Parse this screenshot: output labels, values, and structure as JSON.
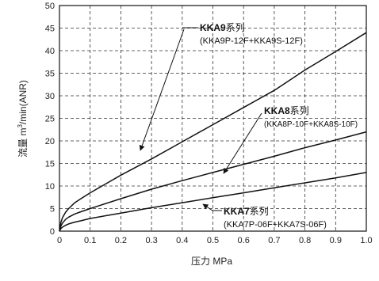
{
  "chart_data": {
    "type": "line",
    "xlabel": "压力 MPa",
    "ylabel_parts": [
      "流量 m",
      "3",
      "/min(ANR)"
    ],
    "xlim": [
      0,
      1.0
    ],
    "ylim": [
      0,
      50
    ],
    "x_ticks": [
      "0",
      "0.1",
      "0.2",
      "0.3",
      "0.4",
      "0.5",
      "0.6",
      "0.7",
      "0.8",
      "0.9",
      "1.0"
    ],
    "y_ticks": [
      "0",
      "5",
      "10",
      "15",
      "20",
      "25",
      "30",
      "35",
      "40",
      "45",
      "50"
    ],
    "grid": true,
    "series": [
      {
        "model": "KKA9",
        "suffix": "系列",
        "detail": "(KKA9P-12F+KKA9S-12F)",
        "x": [
          0,
          0.005,
          0.01,
          0.02,
          0.03,
          0.05,
          0.07,
          0.1,
          0.2,
          0.3,
          0.4,
          0.5,
          0.6,
          0.7,
          0.8,
          0.9,
          1.0
        ],
        "y": [
          0,
          2.0,
          3.0,
          4.2,
          5.0,
          6.3,
          7.2,
          8.5,
          12.4,
          16.0,
          19.8,
          23.6,
          27.4,
          31.2,
          35.7,
          39.8,
          44.0
        ]
      },
      {
        "model": "KKA8",
        "suffix": "系列",
        "detail": "(KKA8P-10F+KKA8S-10F)",
        "x": [
          0,
          0.005,
          0.01,
          0.02,
          0.03,
          0.05,
          0.07,
          0.1,
          0.2,
          0.3,
          0.4,
          0.5,
          0.6,
          0.7,
          0.8,
          0.9,
          1.0
        ],
        "y": [
          0,
          1.2,
          1.8,
          2.6,
          3.1,
          3.8,
          4.3,
          5.0,
          7.2,
          9.3,
          11.2,
          13.0,
          14.8,
          16.6,
          18.5,
          20.2,
          22.0
        ]
      },
      {
        "model": "KKA7",
        "suffix": "系列",
        "detail": "(KKA7P-06F+KKA7S-06F)",
        "x": [
          0,
          0.005,
          0.01,
          0.02,
          0.03,
          0.05,
          0.07,
          0.1,
          0.2,
          0.3,
          0.4,
          0.5,
          0.6,
          0.7,
          0.8,
          0.9,
          1.0
        ],
        "y": [
          0,
          0.6,
          0.9,
          1.3,
          1.6,
          2.0,
          2.3,
          2.8,
          4.0,
          5.2,
          6.3,
          7.4,
          8.5,
          9.6,
          10.7,
          11.8,
          13.0
        ]
      }
    ]
  }
}
